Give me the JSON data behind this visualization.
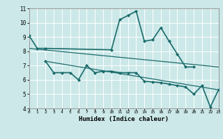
{
  "background_color": "#cce8e8",
  "grid_color": "#ffffff",
  "line_color": "#1a6b6b",
  "x_label": "Humidex (Indice chaleur)",
  "x_ticks": [
    0,
    1,
    2,
    3,
    4,
    5,
    6,
    7,
    8,
    9,
    10,
    11,
    12,
    13,
    14,
    15,
    16,
    17,
    18,
    19,
    20,
    21,
    22,
    23
  ],
  "ylim": [
    4,
    11
  ],
  "xlim": [
    0,
    23
  ],
  "yticks": [
    4,
    5,
    6,
    7,
    8,
    9,
    10,
    11
  ],
  "series": [
    {
      "x": [
        0,
        1,
        2,
        10,
        11,
        12,
        13,
        14,
        15,
        16,
        17,
        18,
        19,
        20
      ],
      "y": [
        9.1,
        8.2,
        8.2,
        8.1,
        10.2,
        10.5,
        10.8,
        8.7,
        8.8,
        9.65,
        8.7,
        7.8,
        6.9,
        6.9
      ],
      "marker": "D",
      "markersize": 2.0,
      "linewidth": 1.2
    },
    {
      "x": [
        2,
        3,
        4,
        5,
        6,
        7,
        8,
        9,
        10,
        11,
        12,
        13,
        14,
        15,
        16,
        17,
        18,
        19,
        20,
        21,
        22,
        23
      ],
      "y": [
        7.3,
        6.5,
        6.5,
        6.5,
        6.0,
        7.0,
        6.5,
        6.6,
        6.6,
        6.5,
        6.5,
        6.5,
        5.9,
        5.85,
        5.8,
        5.7,
        5.6,
        5.5,
        5.0,
        5.6,
        4.1,
        5.3
      ],
      "marker": "D",
      "markersize": 2.0,
      "linewidth": 1.2
    },
    {
      "x": [
        0,
        23
      ],
      "y": [
        8.2,
        6.9
      ],
      "marker": null,
      "linewidth": 0.9
    },
    {
      "x": [
        2,
        23
      ],
      "y": [
        7.3,
        5.3
      ],
      "marker": null,
      "linewidth": 0.9
    }
  ]
}
